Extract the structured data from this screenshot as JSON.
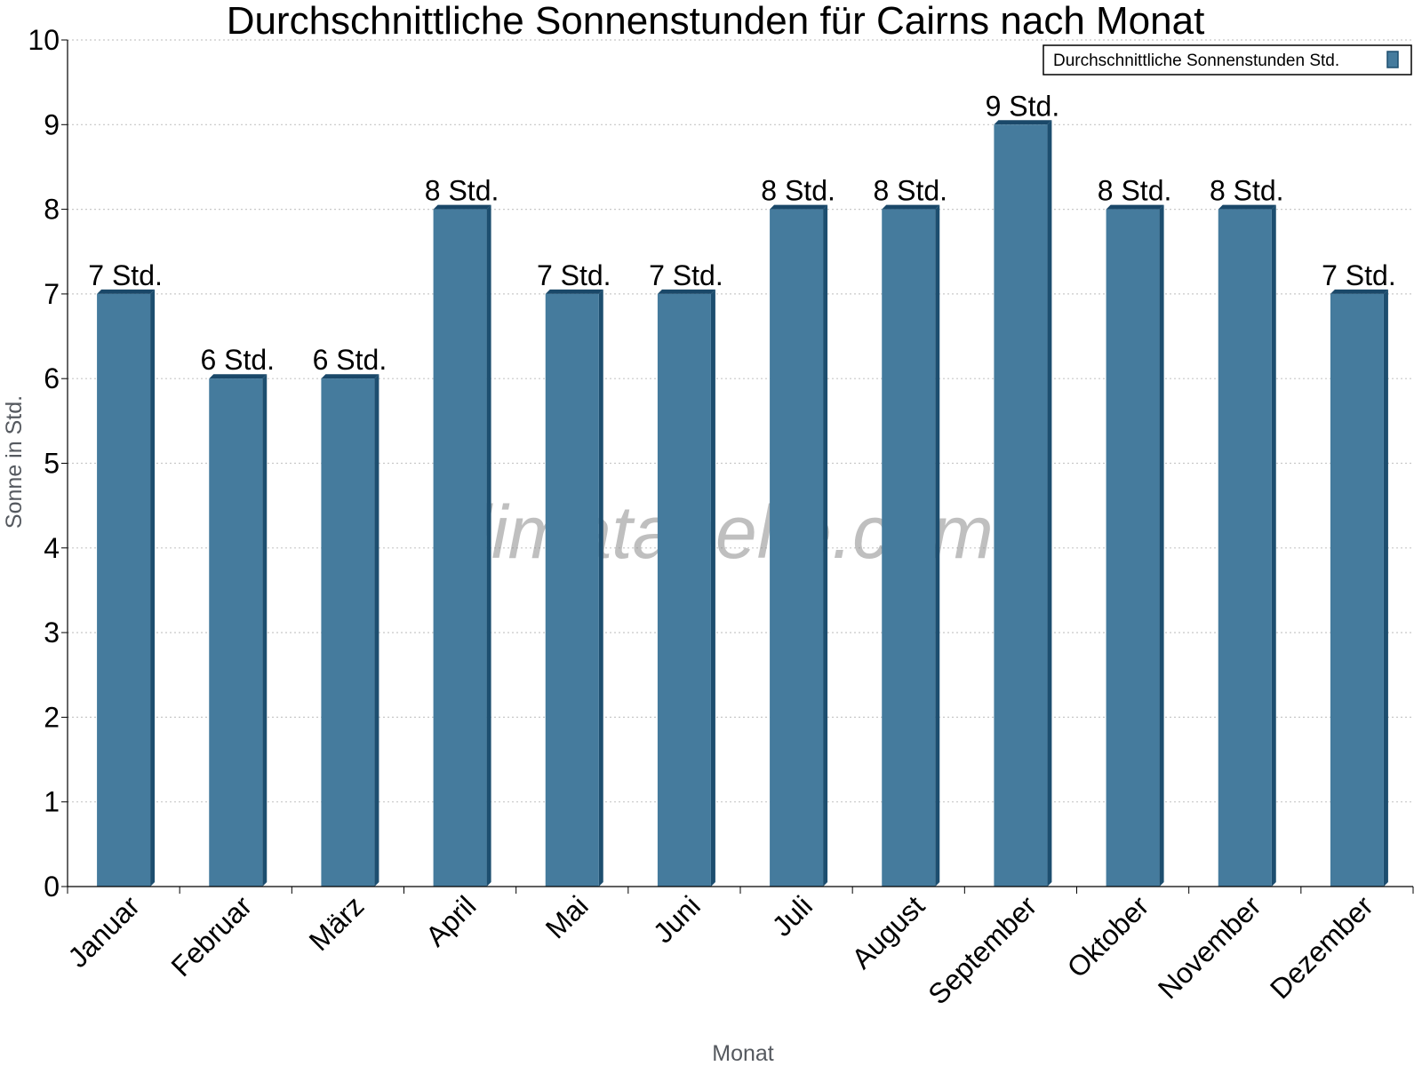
{
  "watermark": "klimatabelle.com",
  "chart_data": {
    "type": "bar",
    "title": "Durchschnittliche Sonnenstunden für Cairns nach Monat",
    "xlabel": "Monat",
    "ylabel": "Sonne in Std.",
    "ylim": [
      0,
      10
    ],
    "yticks": [
      "0",
      "1",
      "2",
      "3",
      "4",
      "5",
      "6",
      "7",
      "8",
      "9",
      "10"
    ],
    "grid": true,
    "legend_position": "top-right",
    "categories": [
      "Januar",
      "Februar",
      "März",
      "April",
      "Mai",
      "Juni",
      "Juli",
      "August",
      "September",
      "Oktober",
      "November",
      "Dezember"
    ],
    "series": [
      {
        "name": "Durchschnittliche Sonnenstunden Std.",
        "values": [
          7,
          6,
          6,
          8,
          7,
          7,
          8,
          8,
          9,
          8,
          8,
          7
        ],
        "labels": [
          "7 Std.",
          "6 Std.",
          "6 Std.",
          "8 Std.",
          "7 Std.",
          "7 Std.",
          "8 Std.",
          "8 Std.",
          "9 Std.",
          "8 Std.",
          "8 Std.",
          "7 Std."
        ]
      }
    ],
    "colors": {
      "bar": "#457b9d",
      "bar_side": "#1d4e6f",
      "bar_top": "#1a4869",
      "axis": "#000000",
      "grid": "#c8c8c8"
    }
  }
}
